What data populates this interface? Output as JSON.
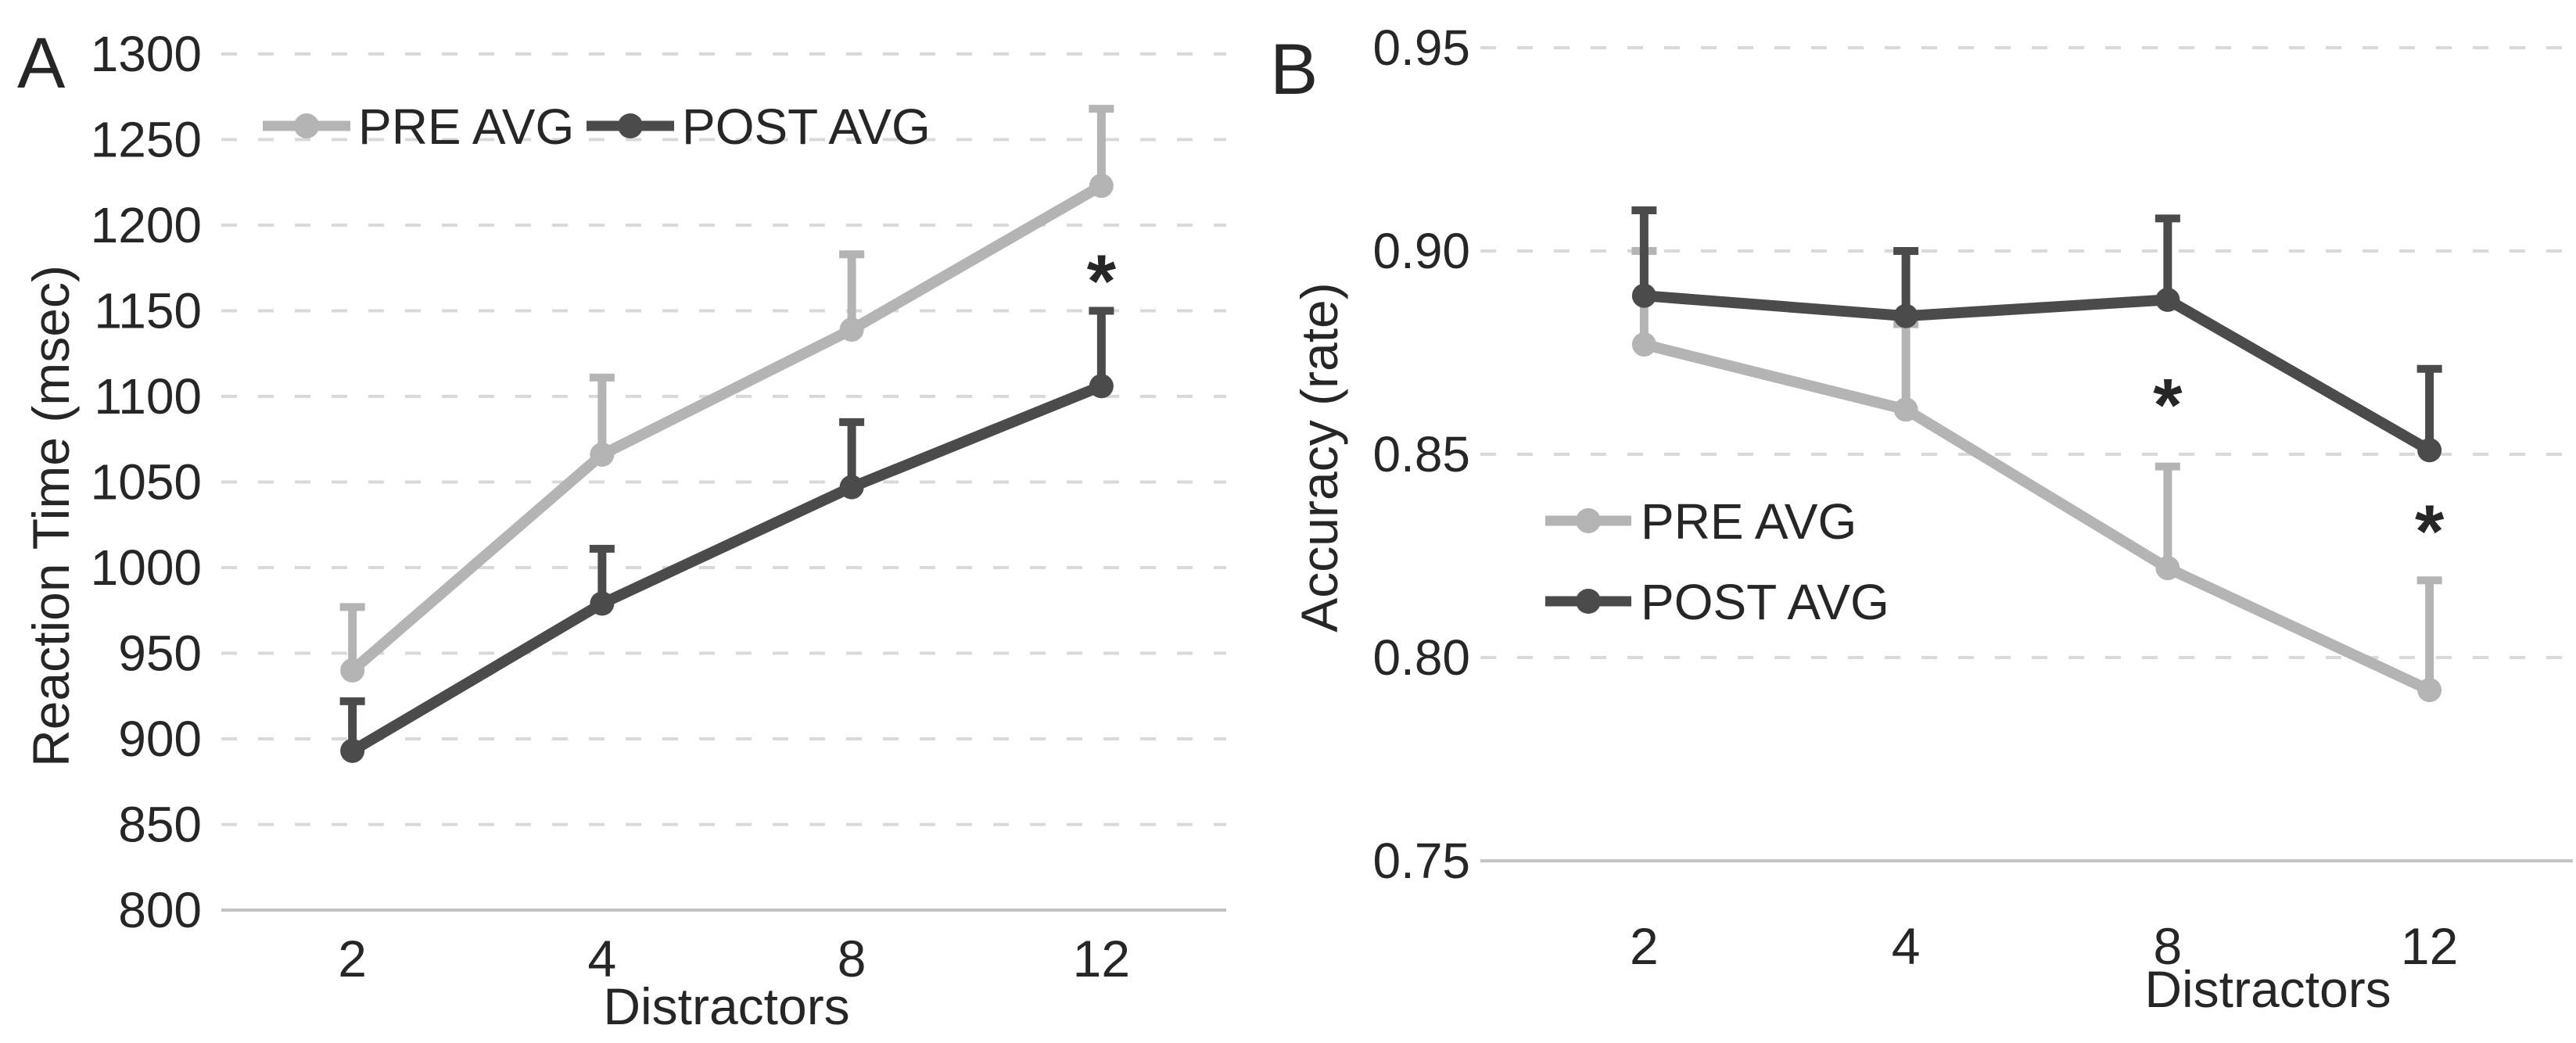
{
  "figure": {
    "background": "#ffffff",
    "text_color": "#262626",
    "gridline_color": "#d9d9d9",
    "axis_line_color": "#c3c3c3"
  },
  "chart_data": [
    {
      "panel_letter": "A",
      "type": "line",
      "x_categories": [
        2,
        4,
        8,
        12
      ],
      "xtick_labels": [
        "2",
        "4",
        "8",
        "12"
      ],
      "xlabel": "Distractors",
      "ylabel": "Reaction Time (msec)",
      "ylim": [
        800,
        1300
      ],
      "ytick_step": 50,
      "ytick_labels": [
        "800",
        "850",
        "900",
        "950",
        "1000",
        "1050",
        "1100",
        "1150",
        "1200",
        "1250",
        "1300"
      ],
      "grid": "horizontal-dashed",
      "legend_position": "top-inside-horizontal",
      "legend_labels": [
        "PRE AVG",
        "POST AVG"
      ],
      "series": [
        {
          "name": "PRE AVG",
          "color": "#b4b4b4",
          "values": [
            940,
            1066,
            1139,
            1223
          ],
          "error_up_to": [
            977,
            1111,
            1183,
            1268
          ]
        },
        {
          "name": "POST AVG",
          "color": "#4b4b4b",
          "values": [
            893,
            979,
            1047,
            1106
          ],
          "error_up_to": [
            922,
            1011,
            1085,
            1150
          ]
        }
      ],
      "annotations": [
        {
          "text": "*",
          "x": 12,
          "y": 1172
        }
      ]
    },
    {
      "panel_letter": "B",
      "type": "line",
      "x_categories": [
        2,
        4,
        8,
        12
      ],
      "xtick_labels": [
        "2",
        "4",
        "8",
        "12"
      ],
      "xlabel": "Distractors",
      "ylabel": "Accuracy (rate)",
      "ylim": [
        0.75,
        0.95
      ],
      "ytick_step": 0.05,
      "ytick_labels": [
        "0.75",
        "0.80",
        "0.85",
        "0.90",
        "0.95"
      ],
      "grid": "horizontal-dashed",
      "legend_position": "middle-left-inside-vertical",
      "legend_labels": [
        "PRE AVG",
        "POST AVG"
      ],
      "series": [
        {
          "name": "PRE AVG",
          "color": "#b4b4b4",
          "values": [
            0.877,
            0.861,
            0.822,
            0.792
          ],
          "error_up_to": [
            0.9,
            0.882,
            0.847,
            0.819
          ]
        },
        {
          "name": "POST AVG",
          "color": "#4b4b4b",
          "values": [
            0.889,
            0.884,
            0.888,
            0.851
          ],
          "error_up_to": [
            0.91,
            0.9,
            0.908,
            0.871
          ]
        }
      ],
      "annotations": [
        {
          "text": "*",
          "x": 8,
          "y": 0.864
        },
        {
          "text": "*",
          "x": 12,
          "y": 0.833
        }
      ]
    }
  ]
}
